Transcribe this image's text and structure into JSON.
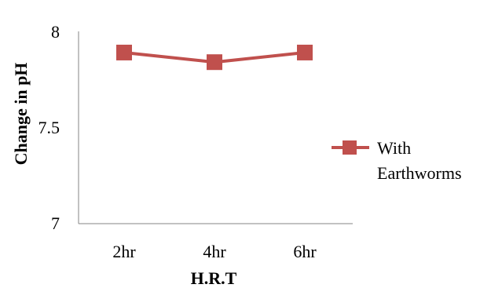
{
  "chart_data": {
    "type": "line",
    "categories": [
      "2hr",
      "4hr",
      "6hr"
    ],
    "series": [
      {
        "name": "With Earthworms",
        "values": [
          7.89,
          7.84,
          7.89
        ],
        "color": "#c0504d"
      }
    ],
    "xlabel": "H.R.T",
    "ylabel": "Change in pH",
    "ylim": [
      7,
      8
    ],
    "yticks": [
      "7",
      "7.5",
      "8"
    ],
    "grid": false,
    "legend": {
      "position": "right",
      "lines": [
        "With",
        "Earthworms"
      ]
    }
  }
}
